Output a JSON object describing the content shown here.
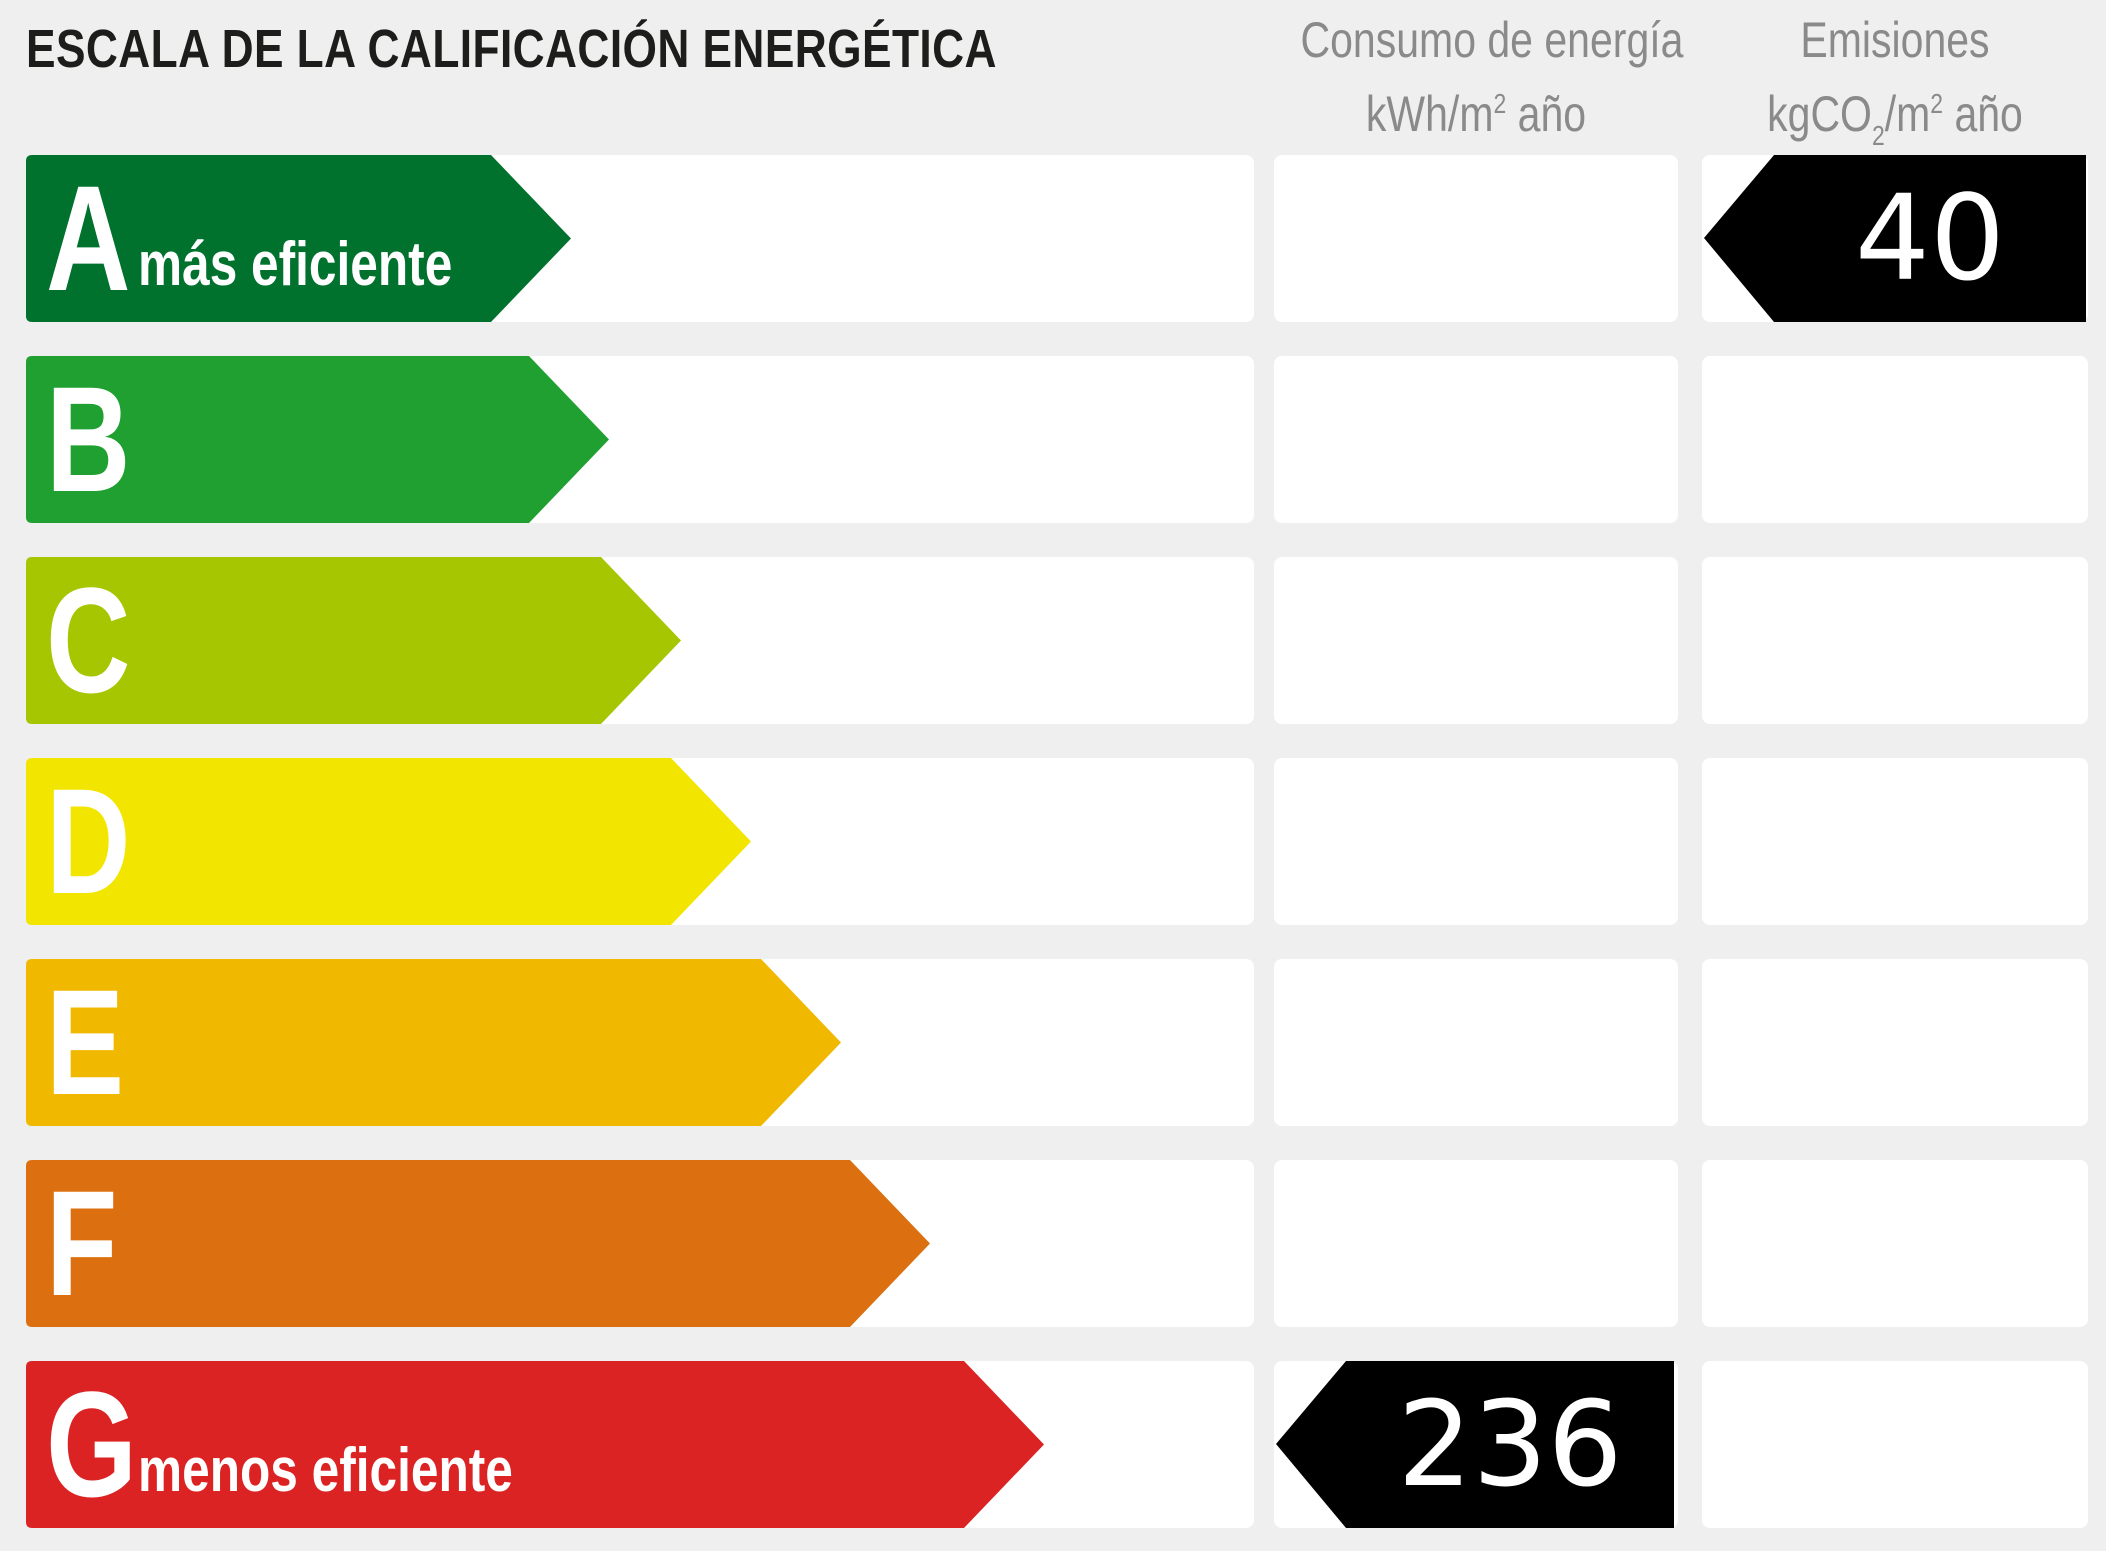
{
  "title": "ESCALA DE LA CALIFICACIÓN ENERGÉTICA",
  "columns": {
    "consumo": {
      "line1": "Consumo de energía",
      "line2_pre": "kWh/m",
      "line2_sup": "2",
      "line2_post": " año"
    },
    "emisiones": {
      "line1": "Emisiones",
      "line2_pre": "kgCO",
      "line2_sub": "2",
      "line2_mid": "/m",
      "line2_sup": "2",
      "line2_post": " año"
    }
  },
  "ratings": [
    {
      "letter": "A",
      "label": "más eficiente",
      "color": "#00722e"
    },
    {
      "letter": "B",
      "label": "",
      "color": "#1fa031"
    },
    {
      "letter": "C",
      "label": "",
      "color": "#a5c600"
    },
    {
      "letter": "D",
      "label": "",
      "color": "#f2e500"
    },
    {
      "letter": "E",
      "label": "",
      "color": "#f1b800"
    },
    {
      "letter": "F",
      "label": "",
      "color": "#dc7010"
    },
    {
      "letter": "G",
      "label": "menos eficiente",
      "color": "#dc2324"
    }
  ],
  "consumo_value": {
    "rating": "G",
    "value": "236"
  },
  "emisiones_value": {
    "rating": "A",
    "value": "40"
  },
  "indicator_color": "#000000"
}
